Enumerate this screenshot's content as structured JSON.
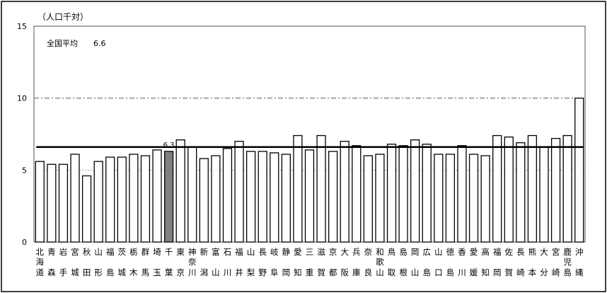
{
  "chart_data": {
    "type": "bar",
    "ylabel": "（人口千対）",
    "ylim": [
      0,
      15
    ],
    "yticks": [
      0,
      5,
      10,
      15
    ],
    "average": {
      "label": "全国平均",
      "value": 6.6,
      "display": "6.6"
    },
    "highlight": {
      "index": 11,
      "label": "6.3"
    },
    "colors": {
      "bar_fill": "#ffffff",
      "bar_stroke": "#000000",
      "highlight_fill": "#808080",
      "average_line": "#000000"
    },
    "categories": [
      "北海道",
      "青森",
      "岩手",
      "宮城",
      "秋田",
      "山形",
      "福島",
      "茨城",
      "栃木",
      "群馬",
      "埼玉",
      "千葉",
      "東京",
      "神奈川",
      "新潟",
      "富山",
      "石川",
      "福井",
      "山梨",
      "長野",
      "岐阜",
      "静岡",
      "愛知",
      "三重",
      "滋賀",
      "京都",
      "大阪",
      "兵庫",
      "奈良",
      "和歌山",
      "鳥取",
      "島根",
      "岡山",
      "広島",
      "山口",
      "徳島",
      "香川",
      "愛媛",
      "高知",
      "福岡",
      "佐賀",
      "長崎",
      "熊本",
      "大分",
      "宮崎",
      "鹿児島",
      "沖縄"
    ],
    "values": [
      5.6,
      5.4,
      5.4,
      6.1,
      4.6,
      5.6,
      5.9,
      5.9,
      6.1,
      6.0,
      6.4,
      6.3,
      7.1,
      6.6,
      5.8,
      6.0,
      6.5,
      7.0,
      6.3,
      6.3,
      6.2,
      6.1,
      7.4,
      6.4,
      7.4,
      6.3,
      7.0,
      6.7,
      6.0,
      6.1,
      6.8,
      6.7,
      7.1,
      6.8,
      6.1,
      6.1,
      6.7,
      6.1,
      6.0,
      7.4,
      7.3,
      6.9,
      7.4,
      6.6,
      7.2,
      7.4,
      10.0
    ]
  }
}
